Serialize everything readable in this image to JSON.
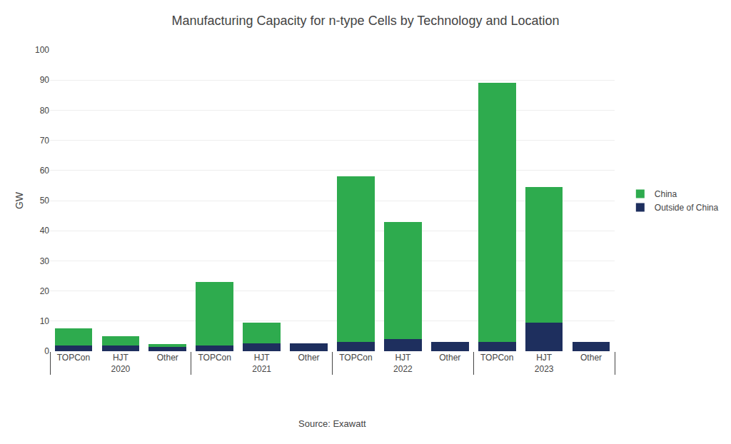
{
  "chart_data": {
    "type": "bar",
    "stacked": true,
    "title": "Manufacturing Capacity for n-type Cells by Technology and Location",
    "ylabel": "GW",
    "groups": [
      "2020",
      "2021",
      "2022",
      "2023"
    ],
    "categories": [
      "TOPCon",
      "HJT",
      "Other",
      "TOPCon",
      "HJT",
      "Other",
      "TOPCon",
      "HJT",
      "Other",
      "TOPCon",
      "HJT",
      "Other"
    ],
    "series": [
      {
        "name": "Outside of China",
        "color": "#1e2f5e",
        "values": [
          2.0,
          2.0,
          1.5,
          2.0,
          2.5,
          2.5,
          3.0,
          4.0,
          3.0,
          3.0,
          9.5,
          3.0
        ]
      },
      {
        "name": "China",
        "color": "#2eab4e",
        "values": [
          5.5,
          3.0,
          0.8,
          21.0,
          7.0,
          0.0,
          55.0,
          39.0,
          0.0,
          86.0,
          45.0,
          0.0
        ]
      }
    ],
    "ylim": [
      0,
      100
    ],
    "yticks": [
      0,
      10,
      20,
      30,
      40,
      50,
      60,
      70,
      80,
      90,
      100
    ],
    "grid": true,
    "legend": "right",
    "annotations": [
      "Source: Exawatt"
    ]
  }
}
